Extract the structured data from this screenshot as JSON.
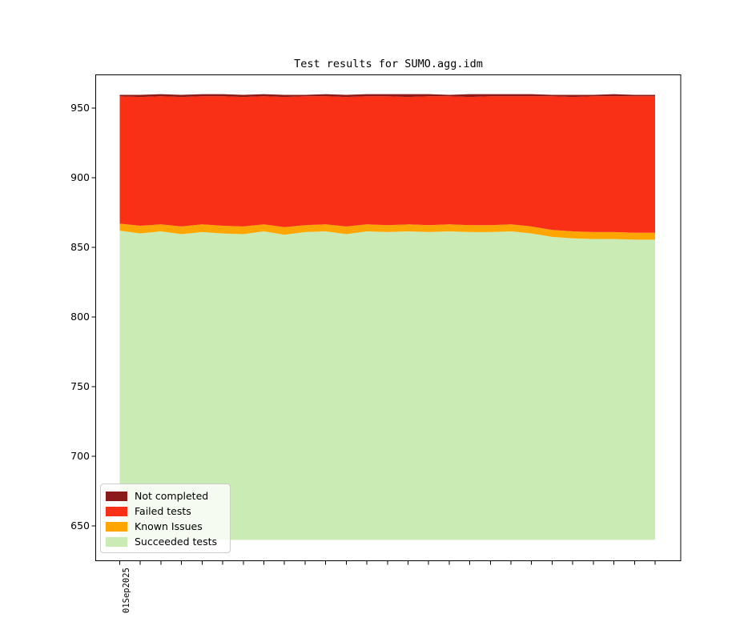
{
  "title": "Test results for SUMO.agg.idm",
  "chart_data": {
    "type": "area",
    "stacked": true,
    "title": "Test results for SUMO.agg.idm",
    "xlabel": "",
    "ylabel": "",
    "x_first_tick_label": "01Sep2025",
    "num_points": 27,
    "grid": false,
    "legend_position": "lower left",
    "ylim": [
      625,
      974
    ],
    "y_ticks": [
      650,
      700,
      750,
      800,
      850,
      900,
      950
    ],
    "baseline": 640,
    "note": "series listed bottom-to-top; 'top' arrays are the cumulative upper boundary values read from the y-axis for each of the 27 daily points",
    "series": [
      {
        "name": "Succeeded tests",
        "color": "#cbebb4",
        "top": [
          862,
          860,
          861.5,
          859.5,
          861,
          860,
          859.5,
          861.5,
          859,
          861,
          861.5,
          859.5,
          861.5,
          861,
          861.5,
          861,
          861.5,
          861,
          861,
          861.5,
          860,
          857.5,
          856.5,
          856,
          856,
          855.5,
          855.5
        ]
      },
      {
        "name": "Known Issues",
        "color": "#ffa500",
        "top": [
          867,
          865.5,
          866.5,
          865,
          866.5,
          865.5,
          865,
          866.5,
          864.5,
          866,
          866.5,
          865,
          866.5,
          866,
          866.5,
          866,
          866.5,
          866,
          866,
          866.5,
          865,
          862.5,
          861.5,
          861,
          861,
          860.5,
          860.5
        ]
      },
      {
        "name": "Failed tests",
        "color": "#f93016",
        "top": [
          958.5,
          958,
          958.5,
          958,
          958.5,
          958.5,
          958,
          958.5,
          958,
          958.5,
          958.5,
          958,
          958.5,
          958.5,
          958,
          958.5,
          958.5,
          958,
          958.5,
          958.5,
          958.5,
          958.5,
          958,
          958.5,
          958.5,
          958.5,
          958.5
        ]
      },
      {
        "name": "Not completed",
        "color": "#8b1a1a",
        "top": [
          959.5,
          959.5,
          960,
          959.5,
          960,
          960,
          959.5,
          960,
          959.5,
          959.5,
          960,
          959.5,
          960,
          960,
          960,
          960,
          959.5,
          960,
          960,
          960,
          960,
          959.5,
          959.5,
          959.5,
          960,
          959.5,
          959.5
        ]
      }
    ]
  },
  "legend": {
    "items": [
      {
        "label": "Not completed",
        "color": "#8b1a1a"
      },
      {
        "label": "Failed tests",
        "color": "#f93016"
      },
      {
        "label": "Known Issues",
        "color": "#ffa500"
      },
      {
        "label": "Succeeded tests",
        "color": "#cbebb4"
      }
    ]
  },
  "axes": {
    "color": "#000000"
  }
}
